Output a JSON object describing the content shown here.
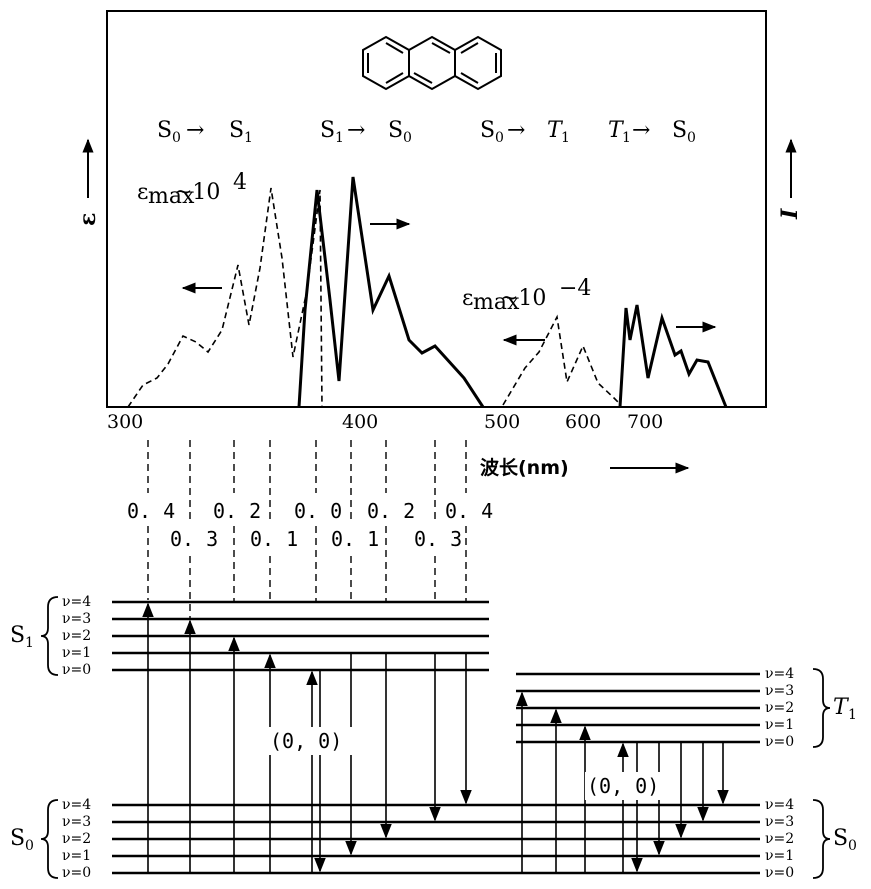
{
  "transitions": [
    {
      "main": "S",
      "sub": "0",
      "arrow": "→",
      "main2": "S",
      "sub2": "1"
    },
    {
      "main": "S",
      "sub": "1",
      "arrow": "→",
      "main2": "S",
      "sub2": "0"
    },
    {
      "main": "S",
      "sub": "0",
      "arrow": "→",
      "main2": "T",
      "sub2": "1"
    },
    {
      "main": "T",
      "sub": "1",
      "arrow": "→",
      "main2": "S",
      "sub2": "0"
    }
  ],
  "y_axis_left": "ε",
  "y_axis_right": "I",
  "annotation_high": {
    "prefix": "ε",
    "sub": "max",
    "text": "~10",
    "sup": "4"
  },
  "annotation_low": {
    "prefix": "ε",
    "sub": "max",
    "text": "~10",
    "sup": "−4"
  },
  "ticks": [
    "300",
    "400",
    "500",
    "600",
    "700"
  ],
  "x_axis_label": "波长(nm)",
  "vib_labels": [
    "0. 4",
    "0. 3",
    "0. 2",
    "0. 1",
    "0. 0",
    "0. 1",
    "0. 2",
    "0. 3",
    "0. 4"
  ],
  "states": {
    "s1": {
      "main": "S",
      "sub": "1"
    },
    "s0_left": {
      "main": "S",
      "sub": "0"
    },
    "t1": {
      "main": "T",
      "sub": "1"
    },
    "s0_right": {
      "main": "S",
      "sub": "0"
    }
  },
  "levels": [
    "ν=4",
    "ν=3",
    "ν=2",
    "ν=1",
    "ν=0"
  ],
  "zero_zero_left": "(0, 0)",
  "zero_zero_right": "(0, 0)"
}
